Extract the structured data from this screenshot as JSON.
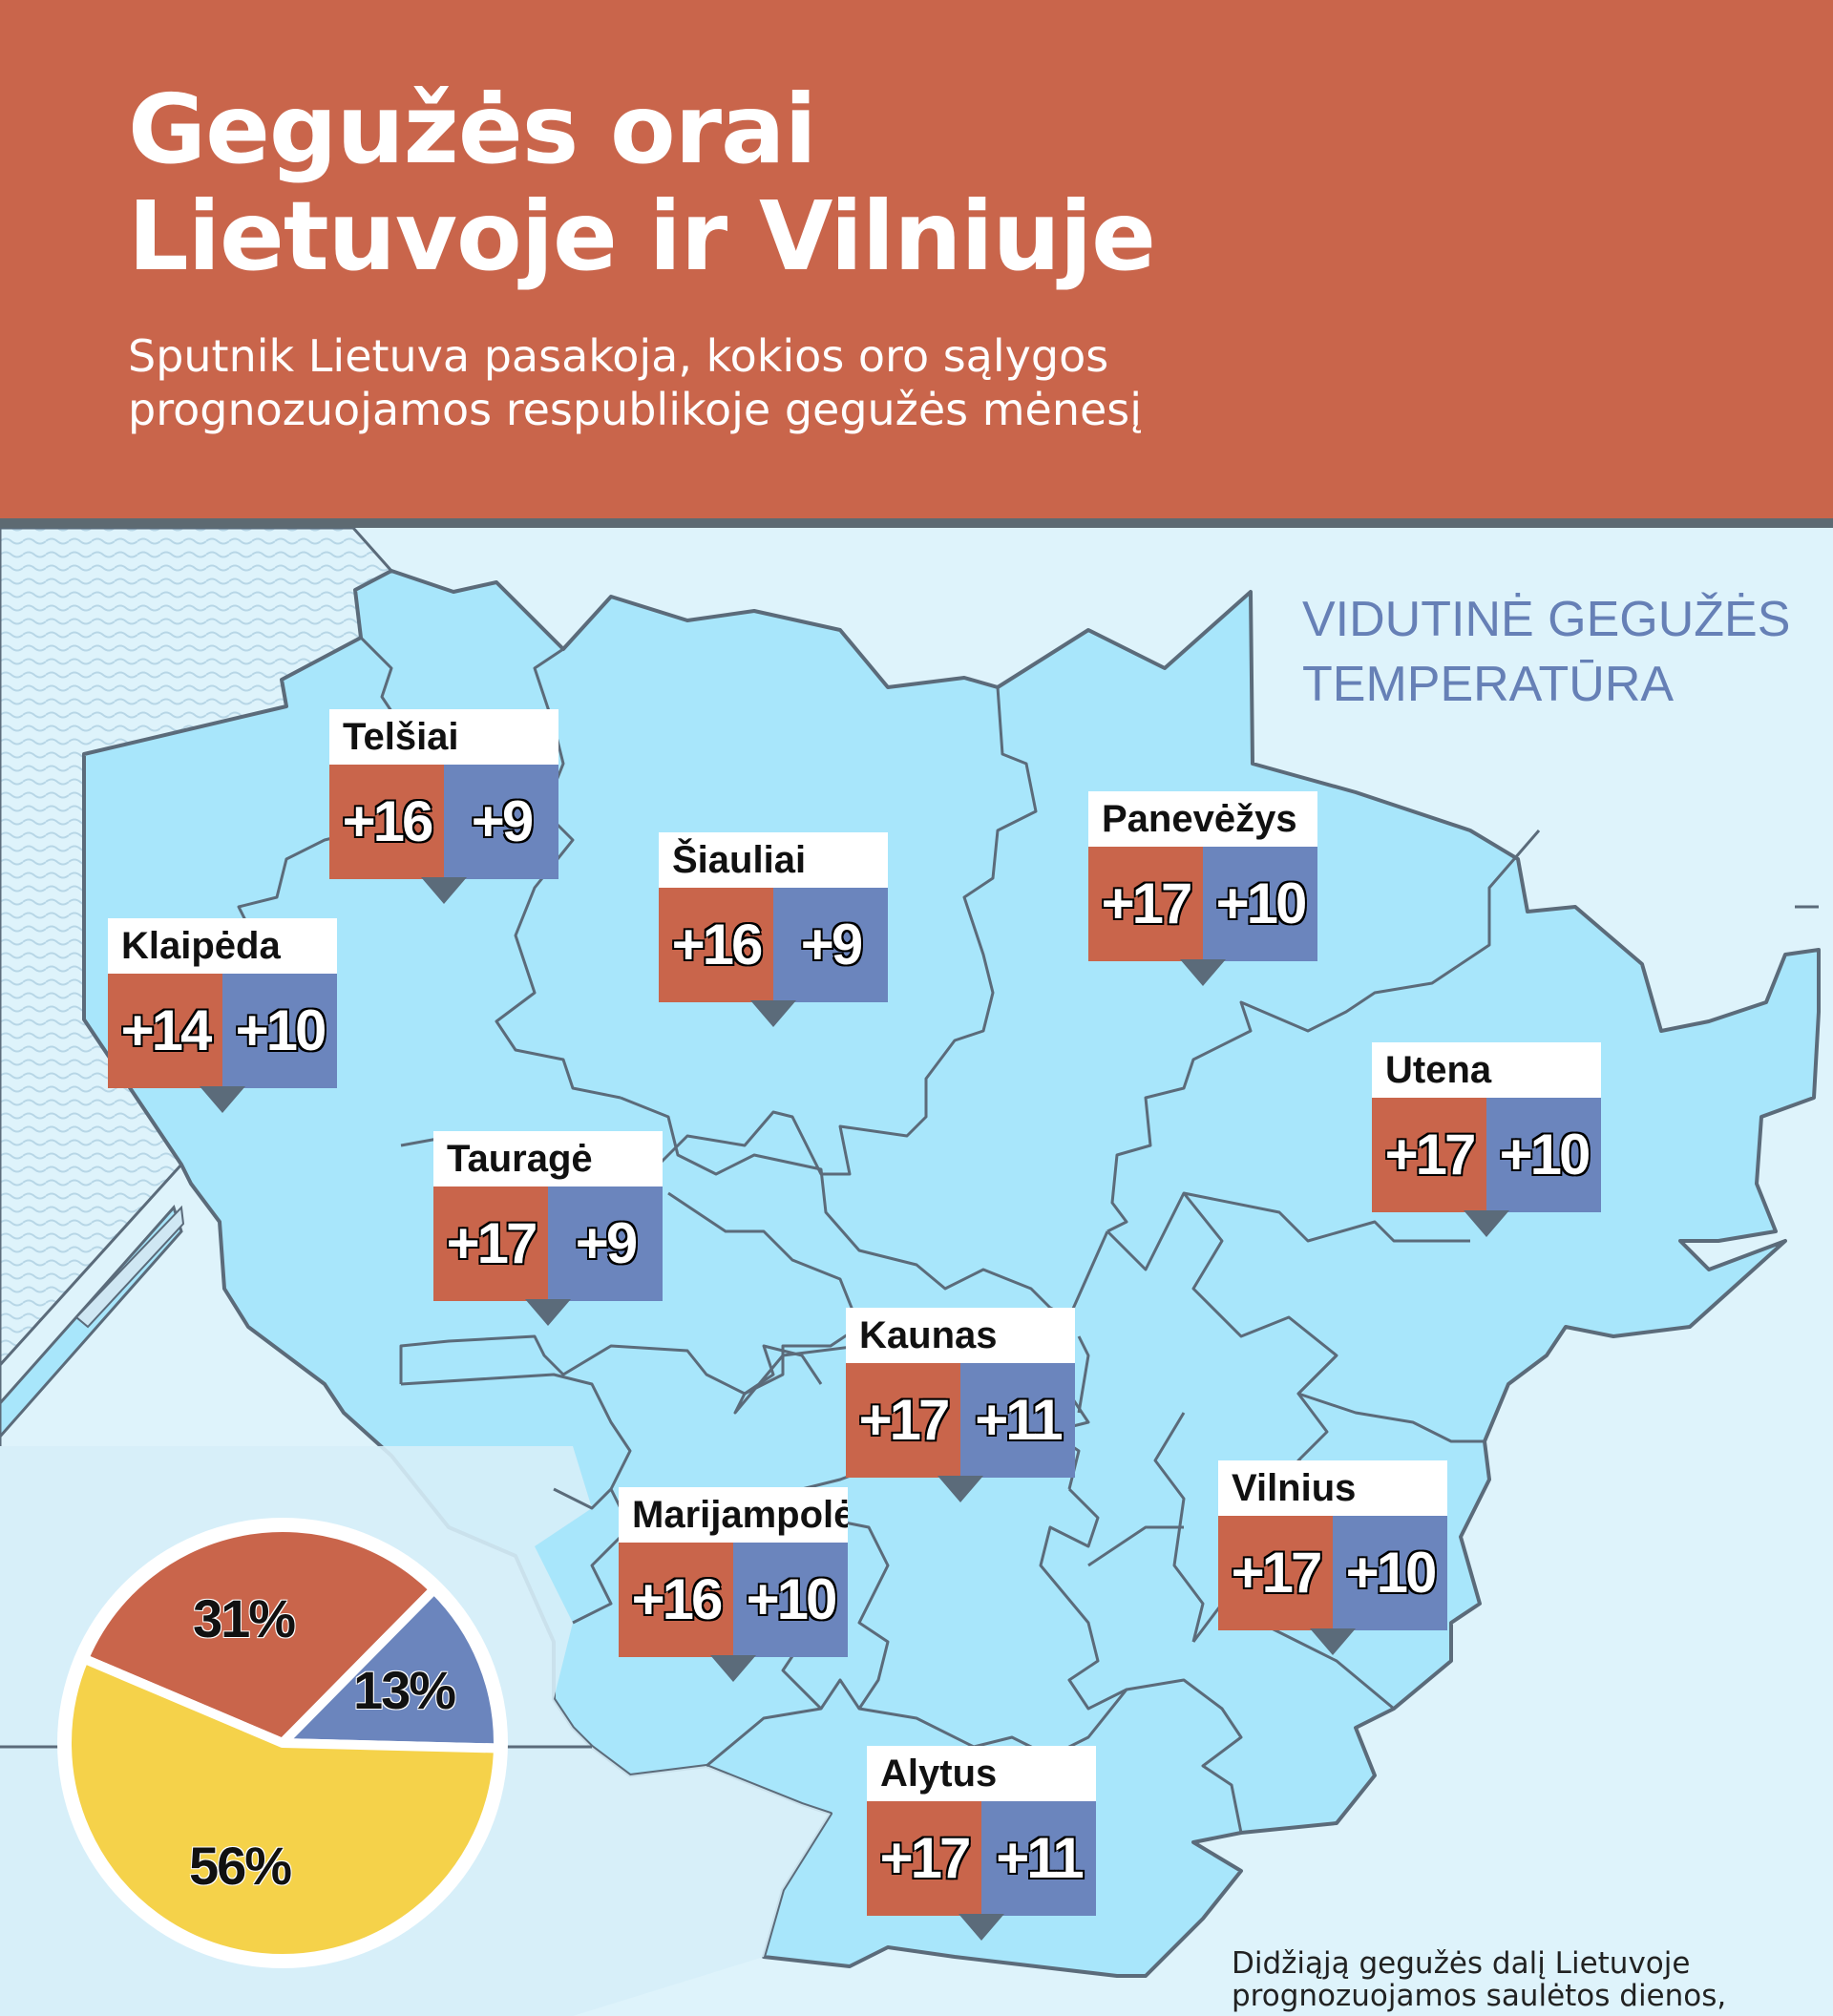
{
  "header": {
    "title_line1": "Gegužės orai",
    "title_line2": "Lietuvoje ir Vilniuje",
    "subtitle_line1": "Sputnik Lietuva pasakoja, kokios oro sąlygos",
    "subtitle_line2": "prognozuojamos respublikoje gegužės mėnesį"
  },
  "legend": {
    "line1": "VIDUTINĖ GEGUŽĖS",
    "line2": "TEMPERATŪRA"
  },
  "cities": [
    {
      "name": "Telšiai",
      "max": "+16",
      "min": "+9"
    },
    {
      "name": "Šiauliai",
      "max": "+16",
      "min": "+9"
    },
    {
      "name": "Panevėžys",
      "max": "+17",
      "min": "+10"
    },
    {
      "name": "Klaipėda",
      "max": "+14",
      "min": "+10"
    },
    {
      "name": "Utena",
      "max": "+17",
      "min": "+10"
    },
    {
      "name": "Tauragė",
      "max": "+17",
      "min": "+9"
    },
    {
      "name": "Kaunas",
      "max": "+17",
      "min": "+11"
    },
    {
      "name": "Vilnius",
      "max": "+17",
      "min": "+10"
    },
    {
      "name": "Marijampolė",
      "max": "+16",
      "min": "+10"
    },
    {
      "name": "Alytus",
      "max": "+17",
      "min": "+11"
    }
  ],
  "pie": {
    "slices": [
      {
        "value": 31,
        "label": "31%",
        "color": "#c9654b"
      },
      {
        "value": 13,
        "label": "13%",
        "color": "#6b85bd"
      },
      {
        "value": 56,
        "label": "56%",
        "color": "#f5d24a"
      }
    ]
  },
  "footnote": {
    "line1": "Didžiąją gegužės dalį Lietuvoje",
    "line2": "prognozuojamos saulėtos dienos,"
  },
  "colors": {
    "header": "#c9654b",
    "max_temp": "#c9654b",
    "min_temp": "#6b85bd",
    "land": "#a8e6fb",
    "sea": "#d6eef8"
  }
}
